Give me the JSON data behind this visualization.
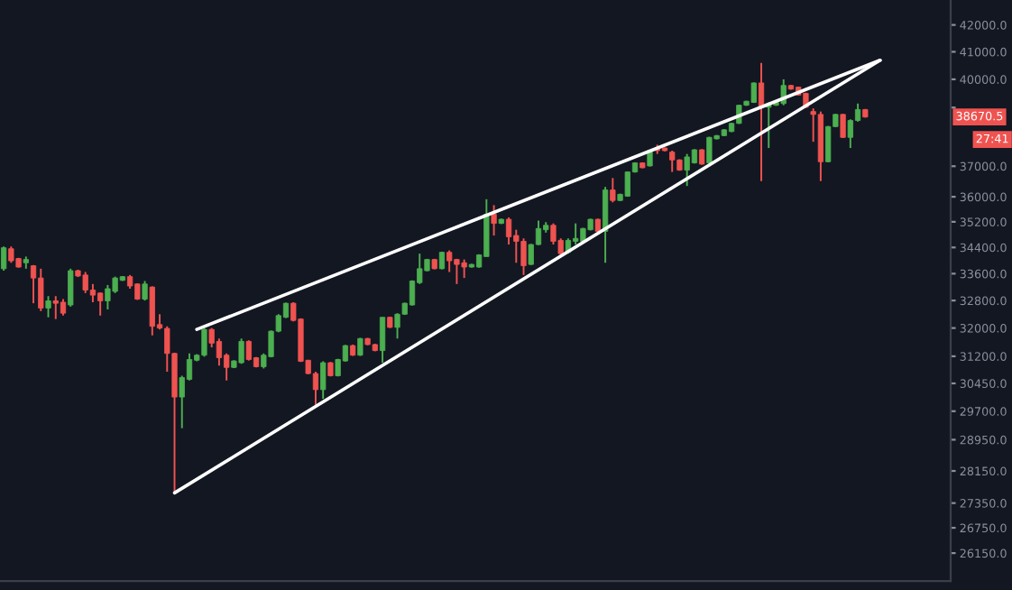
{
  "chart_data": {
    "type": "candlestick",
    "categories": [
      null,
      null,
      null,
      null,
      null,
      null,
      null,
      null,
      null,
      null,
      null,
      null,
      null,
      null,
      null,
      null,
      null,
      null,
      null,
      null,
      null,
      null,
      null,
      null,
      null,
      null,
      null,
      null,
      null,
      null,
      null,
      null,
      null,
      null,
      null,
      null,
      null,
      null,
      null,
      null,
      null,
      null,
      null,
      null,
      null,
      null,
      null,
      null,
      null,
      null,
      null,
      null,
      null,
      null,
      null,
      null,
      null,
      null,
      null,
      null,
      null,
      null,
      null,
      null,
      null,
      null,
      null,
      null,
      null,
      null,
      null,
      null,
      null,
      null,
      null,
      null,
      null,
      null,
      null,
      null,
      null,
      null,
      null,
      null,
      null,
      null,
      null,
      null,
      null,
      null,
      null,
      null,
      null,
      null,
      null,
      null,
      null,
      null,
      null,
      null,
      null,
      null,
      null,
      null,
      null,
      null,
      null,
      null,
      null,
      null,
      null,
      null,
      null,
      null,
      null,
      null,
      null,
      null,
      null,
      null,
      null,
      null,
      null,
      null,
      null,
      null,
      null,
      null
    ],
    "ohlc": [
      [
        33750,
        34430,
        33690,
        34390
      ],
      [
        34360,
        34430,
        33930,
        33990
      ],
      [
        34060,
        34080,
        33780,
        33800
      ],
      [
        33930,
        34120,
        33750,
        34030
      ],
      [
        33840,
        33860,
        32720,
        33470
      ],
      [
        33470,
        33750,
        32490,
        32580
      ],
      [
        32580,
        32930,
        32310,
        32790
      ],
      [
        32790,
        32930,
        32260,
        32720
      ],
      [
        32750,
        32840,
        32360,
        32430
      ],
      [
        32670,
        33750,
        32620,
        33690
      ],
      [
        33690,
        33720,
        33500,
        33530
      ],
      [
        33560,
        33650,
        33020,
        33110
      ],
      [
        33110,
        33290,
        32750,
        32960
      ],
      [
        33020,
        33040,
        32360,
        32790
      ],
      [
        32790,
        33260,
        32540,
        33150
      ],
      [
        33070,
        33510,
        33020,
        33470
      ],
      [
        33400,
        33530,
        33380,
        33510
      ],
      [
        33510,
        33560,
        33150,
        33230
      ],
      [
        33290,
        33310,
        32820,
        32840
      ],
      [
        32840,
        33380,
        32800,
        33290
      ],
      [
        33200,
        33220,
        31790,
        32050
      ],
      [
        32100,
        32400,
        31960,
        32000
      ],
      [
        31990,
        32050,
        30770,
        31280
      ],
      [
        31280,
        31300,
        27600,
        30080
      ],
      [
        30080,
        30660,
        29250,
        30610
      ],
      [
        30560,
        31280,
        30530,
        31110
      ],
      [
        31090,
        31260,
        31060,
        31230
      ],
      [
        31230,
        32000,
        31190,
        31960
      ],
      [
        31960,
        32000,
        31450,
        31570
      ],
      [
        31620,
        31700,
        30940,
        31160
      ],
      [
        31230,
        31280,
        30530,
        30890
      ],
      [
        30890,
        31090,
        30870,
        31070
      ],
      [
        31020,
        31700,
        30990,
        31620
      ],
      [
        31620,
        31650,
        31080,
        31110
      ],
      [
        31160,
        31180,
        30890,
        30910
      ],
      [
        30910,
        31280,
        30860,
        31230
      ],
      [
        31190,
        31930,
        31170,
        31910
      ],
      [
        31910,
        32400,
        31880,
        32360
      ],
      [
        32310,
        32740,
        32290,
        32720
      ],
      [
        32720,
        32750,
        32190,
        32220
      ],
      [
        32260,
        32280,
        31040,
        31060
      ],
      [
        31090,
        31100,
        30700,
        30720
      ],
      [
        30720,
        30770,
        29870,
        30280
      ],
      [
        30280,
        31060,
        30030,
        31020
      ],
      [
        31020,
        31040,
        30640,
        30660
      ],
      [
        30660,
        31130,
        30640,
        31110
      ],
      [
        31070,
        31520,
        31050,
        31500
      ],
      [
        31500,
        31530,
        31210,
        31230
      ],
      [
        31230,
        31720,
        31210,
        31700
      ],
      [
        31700,
        31720,
        31510,
        31530
      ],
      [
        31530,
        31550,
        31340,
        31360
      ],
      [
        31360,
        32310,
        31020,
        32310
      ],
      [
        32310,
        32330,
        32000,
        32020
      ],
      [
        32020,
        32430,
        31700,
        32400
      ],
      [
        32400,
        32740,
        32380,
        32720
      ],
      [
        32670,
        33400,
        32650,
        33380
      ],
      [
        33330,
        34210,
        33290,
        33750
      ],
      [
        33690,
        34050,
        33670,
        34030
      ],
      [
        34030,
        34050,
        33730,
        33750
      ],
      [
        33750,
        34270,
        33730,
        34250
      ],
      [
        34250,
        34310,
        33650,
        33990
      ],
      [
        34030,
        34050,
        33290,
        33880
      ],
      [
        33930,
        34030,
        33470,
        33800
      ],
      [
        33800,
        33900,
        33780,
        33880
      ],
      [
        33800,
        34190,
        33780,
        34170
      ],
      [
        34120,
        35920,
        34120,
        35440
      ],
      [
        35440,
        35730,
        34770,
        35150
      ],
      [
        35150,
        35300,
        35130,
        35280
      ],
      [
        35280,
        35340,
        34490,
        34730
      ],
      [
        34770,
        34950,
        33930,
        34590
      ],
      [
        34590,
        34680,
        33560,
        33840
      ],
      [
        33880,
        34510,
        33860,
        34490
      ],
      [
        34490,
        35240,
        34470,
        34990
      ],
      [
        34950,
        35190,
        34860,
        35090
      ],
      [
        35090,
        35150,
        34490,
        34590
      ],
      [
        34620,
        34680,
        34120,
        34210
      ],
      [
        34250,
        34680,
        34210,
        34620
      ],
      [
        34590,
        35150,
        34490,
        34680
      ],
      [
        34590,
        35010,
        34570,
        34990
      ],
      [
        34950,
        35300,
        34930,
        35280
      ],
      [
        35280,
        35300,
        34880,
        34900
      ],
      [
        34900,
        36320,
        33930,
        36220
      ],
      [
        36220,
        36610,
        35820,
        35880
      ],
      [
        35880,
        36100,
        35860,
        36080
      ],
      [
        36020,
        36830,
        36000,
        36810
      ],
      [
        36810,
        37130,
        36790,
        37110
      ],
      [
        37110,
        37130,
        36930,
        36950
      ],
      [
        37010,
        37540,
        36990,
        37520
      ],
      [
        37610,
        37720,
        37410,
        37520
      ],
      [
        37610,
        37630,
        37500,
        37520
      ],
      [
        37470,
        37520,
        36810,
        37210
      ],
      [
        37210,
        37230,
        36850,
        36870
      ],
      [
        36870,
        37410,
        36350,
        37310
      ],
      [
        37110,
        37570,
        37090,
        37550
      ],
      [
        37550,
        37570,
        37050,
        37070
      ],
      [
        37110,
        37990,
        37090,
        37970
      ],
      [
        37920,
        38050,
        37900,
        38030
      ],
      [
        38030,
        38250,
        38010,
        38230
      ],
      [
        38170,
        38470,
        38150,
        38450
      ],
      [
        38450,
        39100,
        38430,
        39080
      ],
      [
        39080,
        39240,
        39060,
        39220
      ],
      [
        39180,
        39890,
        39160,
        39870
      ],
      [
        39870,
        40590,
        36510,
        39010
      ],
      [
        39010,
        39180,
        37610,
        39140
      ],
      [
        39080,
        39200,
        39060,
        39180
      ],
      [
        39140,
        40000,
        39080,
        39780
      ],
      [
        39780,
        39800,
        39630,
        39650
      ],
      [
        39720,
        39740,
        39420,
        39440
      ],
      [
        39500,
        39520,
        38990,
        39010
      ],
      [
        38860,
        38970,
        37820,
        38760
      ],
      [
        38760,
        38860,
        36510,
        37150
      ],
      [
        37150,
        38360,
        37130,
        38340
      ],
      [
        38340,
        38780,
        38320,
        38760
      ],
      [
        38760,
        38780,
        37950,
        37970
      ],
      [
        37970,
        38590,
        37610,
        38550
      ],
      [
        38550,
        39140,
        38510,
        38930
      ],
      [
        38930,
        38950,
        38650,
        38670
      ],
      null,
      null,
      null,
      null,
      null,
      null,
      null,
      null,
      null,
      null,
      null
    ],
    "colors": [
      "#4caf50",
      "#ef5350",
      "#ef5350",
      "#4caf50",
      "#ef5350",
      "#ef5350",
      "#4caf50",
      "#ef5350",
      "#ef5350",
      "#4caf50",
      "#ef5350",
      "#ef5350",
      "#ef5350",
      "#ef5350",
      "#4caf50",
      "#4caf50",
      "#4caf50",
      "#ef5350",
      "#ef5350",
      "#4caf50",
      "#ef5350",
      "#ef5350",
      "#ef5350",
      "#ef5350",
      "#4caf50",
      "#4caf50",
      "#4caf50",
      "#4caf50",
      "#ef5350",
      "#ef5350",
      "#ef5350",
      "#4caf50",
      "#4caf50",
      "#ef5350",
      "#ef5350",
      "#4caf50",
      "#4caf50",
      "#4caf50",
      "#4caf50",
      "#ef5350",
      "#ef5350",
      "#ef5350",
      "#ef5350",
      "#4caf50",
      "#ef5350",
      "#4caf50",
      "#4caf50",
      "#ef5350",
      "#4caf50",
      "#ef5350",
      "#ef5350",
      "#4caf50",
      "#ef5350",
      "#4caf50",
      "#4caf50",
      "#4caf50",
      "#4caf50",
      "#4caf50",
      "#ef5350",
      "#4caf50",
      "#ef5350",
      "#ef5350",
      "#ef5350",
      "#4caf50",
      "#4caf50",
      "#4caf50",
      "#ef5350",
      "#4caf50",
      "#ef5350",
      "#ef5350",
      "#ef5350",
      "#4caf50",
      "#4caf50",
      "#4caf50",
      "#ef5350",
      "#ef5350",
      "#4caf50",
      "#4caf50",
      "#4caf50",
      "#4caf50",
      "#ef5350",
      "#4caf50",
      "#ef5350",
      "#4caf50",
      "#4caf50",
      "#4caf50",
      "#ef5350",
      "#4caf50",
      "#ef5350",
      "#ef5350",
      "#ef5350",
      "#ef5350",
      "#4caf50",
      "#4caf50",
      "#ef5350",
      "#4caf50",
      "#4caf50",
      "#4caf50",
      "#4caf50",
      "#4caf50",
      "#4caf50",
      "#4caf50",
      "#ef5350",
      "#4caf50",
      "#4caf50",
      "#4caf50",
      "#ef5350",
      "#ef5350",
      "#ef5350",
      "#ef5350",
      "#ef5350",
      "#4caf50",
      "#4caf50",
      "#ef5350",
      "#4caf50",
      "#4caf50",
      "#ef5350",
      null,
      null,
      null,
      null,
      null,
      null,
      null,
      null,
      null,
      null,
      null
    ],
    "series": [
      {
        "type": "line",
        "color": "#ffffff",
        "values": [
          null,
          null,
          null,
          null,
          null,
          null,
          null,
          null,
          null,
          null,
          null,
          null,
          null,
          null,
          null,
          null,
          null,
          null,
          null,
          null,
          null,
          null,
          null,
          null,
          null,
          null,
          31960,
          null,
          null,
          null,
          null,
          null,
          null,
          null,
          null,
          null,
          null,
          null,
          null,
          null,
          null,
          null,
          null,
          null,
          null,
          null,
          null,
          null,
          null,
          null,
          null,
          null,
          null,
          null,
          null,
          null,
          null,
          null,
          null,
          null,
          null,
          null,
          null,
          null,
          null,
          null,
          null,
          null,
          null,
          null,
          null,
          null,
          null,
          null,
          null,
          null,
          null,
          null,
          null,
          null,
          null,
          null,
          null,
          null,
          null,
          null,
          null,
          null,
          null,
          null,
          null,
          null,
          null,
          null,
          null,
          null,
          null,
          null,
          null,
          null,
          null,
          null,
          null,
          null,
          null,
          null,
          null,
          null,
          null,
          null,
          null,
          null,
          null,
          null,
          null,
          null,
          null,
          null,
          40690,
          null,
          null,
          null,
          null,
          null,
          null,
          null,
          null,
          null
        ]
      },
      {
        "type": "line",
        "color": "#ffffff",
        "values": [
          null,
          null,
          null,
          null,
          null,
          null,
          null,
          null,
          null,
          null,
          null,
          null,
          null,
          null,
          null,
          null,
          null,
          null,
          null,
          null,
          null,
          null,
          null,
          27600,
          null,
          null,
          null,
          null,
          null,
          null,
          null,
          null,
          null,
          null,
          null,
          null,
          null,
          null,
          null,
          null,
          null,
          null,
          null,
          null,
          null,
          null,
          null,
          null,
          null,
          null,
          null,
          null,
          null,
          null,
          null,
          null,
          null,
          null,
          null,
          null,
          null,
          null,
          null,
          null,
          null,
          null,
          null,
          null,
          null,
          null,
          null,
          null,
          null,
          null,
          null,
          null,
          null,
          null,
          null,
          null,
          null,
          null,
          null,
          null,
          null,
          null,
          null,
          null,
          null,
          null,
          null,
          null,
          null,
          null,
          null,
          null,
          null,
          null,
          null,
          null,
          null,
          null,
          null,
          null,
          null,
          null,
          null,
          null,
          null,
          null,
          null,
          null,
          null,
          null,
          null,
          null,
          null,
          null,
          40690,
          null,
          null,
          null,
          null,
          null,
          null,
          null,
          null,
          null
        ]
      }
    ],
    "log": true,
    "ylim": [
      25500,
      42950
    ],
    "yticks": [
      {
        "value": 42000,
        "label": "42000.0"
      },
      {
        "value": 41000,
        "label": "41000.0"
      },
      {
        "value": 40000,
        "label": "40000.0"
      },
      {
        "value": 39000,
        "label": null
      },
      {
        "value": 37000,
        "label": "37000.0"
      },
      {
        "value": 36000,
        "label": "36000.0"
      },
      {
        "value": 35200,
        "label": "35200.0"
      },
      {
        "value": 34400,
        "label": "34400.0"
      },
      {
        "value": 33600,
        "label": "33600.0"
      },
      {
        "value": 32800,
        "label": "32800.0"
      },
      {
        "value": 32000,
        "label": "32000.0"
      },
      {
        "value": 31200,
        "label": "31200.0"
      },
      {
        "value": 30450,
        "label": "30450.0"
      },
      {
        "value": 29700,
        "label": "29700.0"
      },
      {
        "value": 28950,
        "label": "28950.0"
      },
      {
        "value": 28150,
        "label": "28150.0"
      },
      {
        "value": 27350,
        "label": "27350.0"
      },
      {
        "value": 26750,
        "label": "26750.0"
      },
      {
        "value": 26150,
        "label": "26150.0"
      }
    ],
    "tick_labels": "y",
    "grid": false,
    "legend": false,
    "annotations": [
      {
        "text": "38670.5",
        "y": 38670.5
      },
      "27:41"
    ]
  }
}
